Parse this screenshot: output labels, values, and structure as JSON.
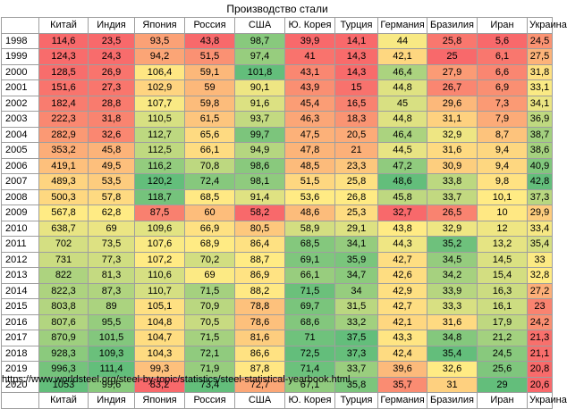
{
  "title": "Производство стали",
  "source": "https://www.worldsteel.org/steel-by-topic/statistics/steel-statistical-yearbook.html",
  "countries": [
    "Китай",
    "Индия",
    "Япония",
    "Россия",
    "США",
    "Ю. Корея",
    "Турция",
    "Германия",
    "Бразилия",
    "Иран",
    "Украина"
  ],
  "years": [
    "1998",
    "1999",
    "2000",
    "2001",
    "2002",
    "2003",
    "2004",
    "2005",
    "2006",
    "2007",
    "2008",
    "2009",
    "2010",
    "2011",
    "2012",
    "2013",
    "2014",
    "2015",
    "2016",
    "2017",
    "2018",
    "2019",
    "2020"
  ],
  "values": [
    [
      "114,6",
      "23,5",
      "93,5",
      "43,8",
      "98,7",
      "39,9",
      "14,1",
      "44",
      "25,8",
      "5,6",
      "24,5"
    ],
    [
      "124,3",
      "24,3",
      "94,2",
      "51,5",
      "97,4",
      "41",
      "14,3",
      "42,1",
      "25",
      "6,1",
      "27,5"
    ],
    [
      "128,5",
      "26,9",
      "106,4",
      "59,1",
      "101,8",
      "43,1",
      "14,3",
      "46,4",
      "27,9",
      "6,6",
      "31,8"
    ],
    [
      "151,6",
      "27,3",
      "102,9",
      "59",
      "90,1",
      "43,9",
      "15",
      "44,8",
      "26,7",
      "6,9",
      "33,1"
    ],
    [
      "182,4",
      "28,8",
      "107,7",
      "59,8",
      "91,6",
      "45,4",
      "16,5",
      "45",
      "29,6",
      "7,3",
      "34,1"
    ],
    [
      "222,3",
      "31,8",
      "110,5",
      "61,5",
      "93,7",
      "46,3",
      "18,3",
      "44,8",
      "31,1",
      "7,9",
      "36,9"
    ],
    [
      "282,9",
      "32,6",
      "112,7",
      "65,6",
      "99,7",
      "47,5",
      "20,5",
      "46,4",
      "32,9",
      "8,7",
      "38,7"
    ],
    [
      "353,2",
      "45,8",
      "112,5",
      "66,1",
      "94,9",
      "47,8",
      "21",
      "44,5",
      "31,6",
      "9,4",
      "38,6"
    ],
    [
      "419,1",
      "49,5",
      "116,2",
      "70,8",
      "98,6",
      "48,5",
      "23,3",
      "47,2",
      "30,9",
      "9,4",
      "40,9"
    ],
    [
      "489,3",
      "53,5",
      "120,2",
      "72,4",
      "98,1",
      "51,5",
      "25,8",
      "48,6",
      "33,8",
      "9,8",
      "42,8"
    ],
    [
      "500,3",
      "57,8",
      "118,7",
      "68,5",
      "91,4",
      "53,6",
      "26,8",
      "45,8",
      "33,7",
      "10,1",
      "37,3"
    ],
    [
      "567,8",
      "62,8",
      "87,5",
      "60",
      "58,2",
      "48,6",
      "25,3",
      "32,7",
      "26,5",
      "10",
      "29,9"
    ],
    [
      "638,7",
      "69",
      "109,6",
      "66,9",
      "80,5",
      "58,9",
      "29,1",
      "43,8",
      "32,9",
      "12",
      "33,4"
    ],
    [
      "702",
      "73,5",
      "107,6",
      "68,9",
      "86,4",
      "68,5",
      "34,1",
      "44,3",
      "35,2",
      "13,2",
      "35,4"
    ],
    [
      "731",
      "77,3",
      "107,2",
      "70,2",
      "88,7",
      "69,1",
      "35,9",
      "42,7",
      "34,5",
      "14,5",
      "33"
    ],
    [
      "822",
      "81,3",
      "110,6",
      "69",
      "86,9",
      "66,1",
      "34,7",
      "42,6",
      "34,2",
      "15,4",
      "32,8"
    ],
    [
      "822,3",
      "87,3",
      "110,7",
      "71,5",
      "88,2",
      "71,5",
      "34",
      "42,9",
      "33,9",
      "16,3",
      "27,2"
    ],
    [
      "803,8",
      "89",
      "105,1",
      "70,9",
      "78,8",
      "69,7",
      "31,5",
      "42,7",
      "33,3",
      "16,1",
      "23"
    ],
    [
      "807,6",
      "95,5",
      "104,8",
      "70,5",
      "78,6",
      "68,6",
      "33,2",
      "42,1",
      "31,6",
      "17,9",
      "24,2"
    ],
    [
      "870,9",
      "101,5",
      "104,7",
      "71,5",
      "81,6",
      "71",
      "37,5",
      "43,3",
      "34,8",
      "21,2",
      "21,3"
    ],
    [
      "928,3",
      "109,3",
      "104,3",
      "72,1",
      "86,6",
      "72,5",
      "37,3",
      "42,4",
      "35,4",
      "24,5",
      "21,1"
    ],
    [
      "996,3",
      "111,4",
      "99,3",
      "71,9",
      "87,8",
      "71,4",
      "33,7",
      "39,6",
      "32,6",
      "25,6",
      "20,8"
    ],
    [
      "1053",
      "99,6",
      "83,2",
      "73,4",
      "72,7",
      "67,1",
      "35,8",
      "35,7",
      "31",
      "29",
      "20,6"
    ]
  ],
  "colors": {
    "low": "#f8696b",
    "mid": "#ffeb84",
    "high": "#63be7b"
  }
}
